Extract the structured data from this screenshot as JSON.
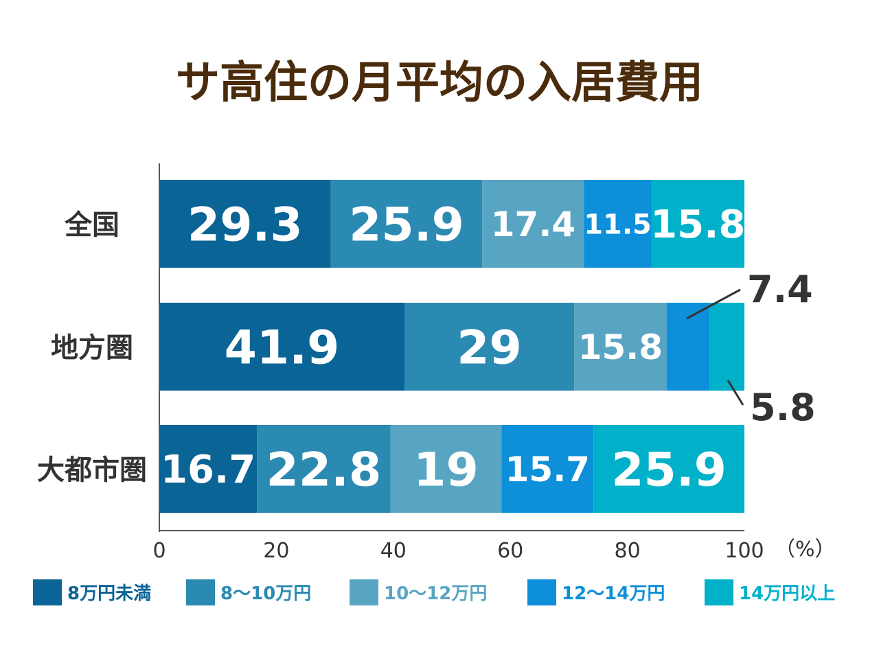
{
  "chart_data": {
    "type": "bar",
    "orientation": "horizontal",
    "stacked": true,
    "title": "サ高住の月平均の入居費用",
    "categories": [
      "全国",
      "地方圏",
      "大都市圏"
    ],
    "series": [
      {
        "name": "8万円未満",
        "color": "#0a6496",
        "values": [
          29.3,
          41.9,
          16.7
        ],
        "labels": [
          "29.3",
          "41.9",
          "16.7"
        ]
      },
      {
        "name": "8～10万円",
        "color": "#2b8ab2",
        "values": [
          25.9,
          29,
          22.8
        ],
        "labels": [
          "25.9",
          "29",
          "22.8"
        ]
      },
      {
        "name": "10～12万円",
        "color": "#58a5c3",
        "values": [
          17.4,
          15.8,
          19
        ],
        "labels": [
          "17.4",
          "15.8",
          "19"
        ]
      },
      {
        "name": "12～14万円",
        "color": "#0d8fda",
        "values": [
          11.5,
          7.4,
          15.7
        ],
        "labels": [
          "11.5",
          "7.4",
          "15.7"
        ]
      },
      {
        "name": "14万円以上",
        "color": "#00b1c9",
        "values": [
          15.8,
          5.8,
          25.9
        ],
        "labels": [
          "15.8",
          "5.8",
          "25.9"
        ]
      }
    ],
    "xlim": [
      0,
      100
    ],
    "xticks": [
      "0",
      "20",
      "40",
      "60",
      "80",
      "100"
    ],
    "xunit": "（%）",
    "legend_position": "bottom",
    "legend_labels": [
      "8万円未満",
      "8～10万円",
      "10～12万円",
      "12～14万円",
      "14万円以上"
    ],
    "callouts": {
      "2-3": "7.4",
      "2-4": "5.8"
    }
  },
  "colors": {
    "title": "#4a2c0c",
    "label": "#333333",
    "axis": "#555555"
  }
}
